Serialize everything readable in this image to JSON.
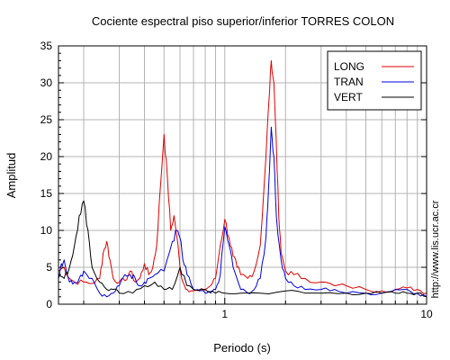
{
  "chart_data": {
    "type": "line",
    "title": "Cociente espectral piso superior/inferior  TORRES COLON",
    "xlabel": "Periodo (s)",
    "ylabel": "Amplitud",
    "x_scale": "log",
    "xlim": [
      0.15,
      10
    ],
    "ylim": [
      0,
      35
    ],
    "x_tick_labels": [
      "1",
      "10"
    ],
    "y_ticks": [
      0,
      5,
      10,
      15,
      20,
      25,
      30,
      35
    ],
    "grid": true,
    "legend_position": "top-right",
    "watermark": "http://www.lis.ucr.ac.cr",
    "series": [
      {
        "name": "LONG",
        "color": "#e00000",
        "x": [
          0.15,
          0.16,
          0.17,
          0.18,
          0.2,
          0.22,
          0.24,
          0.25,
          0.26,
          0.27,
          0.28,
          0.3,
          0.32,
          0.34,
          0.36,
          0.38,
          0.4,
          0.42,
          0.44,
          0.46,
          0.48,
          0.5,
          0.52,
          0.54,
          0.56,
          0.58,
          0.6,
          0.62,
          0.65,
          0.7,
          0.75,
          0.8,
          0.85,
          0.9,
          0.95,
          1.0,
          1.05,
          1.1,
          1.15,
          1.2,
          1.3,
          1.4,
          1.5,
          1.6,
          1.65,
          1.7,
          1.75,
          1.8,
          1.85,
          1.9,
          2.0,
          2.2,
          2.5,
          3.0,
          3.5,
          4.0,
          5.0,
          6.0,
          7.0,
          8.0,
          9.0,
          10.0
        ],
        "y": [
          4.5,
          5.0,
          3.5,
          3.0,
          3.0,
          2.8,
          3.5,
          7.0,
          8.5,
          6.0,
          3.5,
          3.0,
          3.2,
          4.5,
          3.0,
          3.5,
          5.5,
          4.0,
          5.0,
          8.0,
          16.0,
          23.0,
          17.0,
          10.0,
          12.0,
          9.0,
          5.0,
          3.0,
          2.0,
          1.8,
          1.8,
          2.0,
          2.5,
          3.5,
          8.0,
          11.5,
          9.0,
          6.5,
          5.0,
          4.0,
          3.5,
          4.5,
          8.0,
          20.0,
          27.0,
          33.0,
          30.0,
          22.0,
          12.0,
          7.0,
          4.5,
          4.0,
          3.5,
          3.0,
          2.5,
          2.5,
          2.0,
          1.8,
          2.0,
          2.2,
          2.0,
          1.5
        ]
      },
      {
        "name": "TRAN",
        "color": "#0000dd",
        "x": [
          0.15,
          0.155,
          0.16,
          0.17,
          0.18,
          0.19,
          0.2,
          0.22,
          0.24,
          0.26,
          0.28,
          0.3,
          0.32,
          0.34,
          0.36,
          0.38,
          0.4,
          0.42,
          0.45,
          0.5,
          0.55,
          0.58,
          0.6,
          0.62,
          0.65,
          0.7,
          0.75,
          0.8,
          0.85,
          0.9,
          0.95,
          1.0,
          1.05,
          1.1,
          1.2,
          1.3,
          1.4,
          1.5,
          1.6,
          1.65,
          1.7,
          1.75,
          1.8,
          1.9,
          2.0,
          2.2,
          2.5,
          3.0,
          3.5,
          4.0,
          5.0,
          6.0,
          7.0,
          8.0,
          9.0,
          10.0
        ],
        "y": [
          3.5,
          5.5,
          6.0,
          3.0,
          3.0,
          3.5,
          4.5,
          3.5,
          1.5,
          1.0,
          1.5,
          2.5,
          4.0,
          4.0,
          3.5,
          2.5,
          3.0,
          3.5,
          4.0,
          4.5,
          8.5,
          10.0,
          9.0,
          6.0,
          4.0,
          2.0,
          1.8,
          1.5,
          1.5,
          2.0,
          4.0,
          10.5,
          8.0,
          5.0,
          2.0,
          1.5,
          2.0,
          3.5,
          9.0,
          16.0,
          24.0,
          20.0,
          12.0,
          6.0,
          3.5,
          2.5,
          2.0,
          2.0,
          2.0,
          1.5,
          1.5,
          1.5,
          2.0,
          2.0,
          1.5,
          1.0
        ]
      },
      {
        "name": "VERT",
        "color": "#000000",
        "x": [
          0.15,
          0.16,
          0.17,
          0.18,
          0.19,
          0.2,
          0.21,
          0.22,
          0.24,
          0.26,
          0.28,
          0.3,
          0.35,
          0.4,
          0.45,
          0.5,
          0.55,
          0.6,
          0.62,
          0.65,
          0.7,
          0.8,
          0.9,
          1.0,
          1.2,
          1.5,
          2.0,
          2.5,
          3.0,
          4.0,
          5.0,
          6.0,
          7.0,
          8.0,
          9.0,
          10.0
        ],
        "y": [
          4.0,
          3.5,
          5.0,
          8.0,
          12.0,
          14.0,
          10.0,
          5.0,
          3.0,
          2.0,
          2.0,
          1.5,
          1.5,
          2.5,
          3.0,
          2.0,
          2.0,
          5.0,
          4.0,
          2.5,
          2.0,
          2.0,
          1.5,
          1.5,
          1.5,
          1.5,
          1.8,
          1.5,
          1.5,
          1.5,
          1.5,
          1.5,
          1.5,
          1.5,
          1.5,
          1.0
        ]
      }
    ]
  }
}
